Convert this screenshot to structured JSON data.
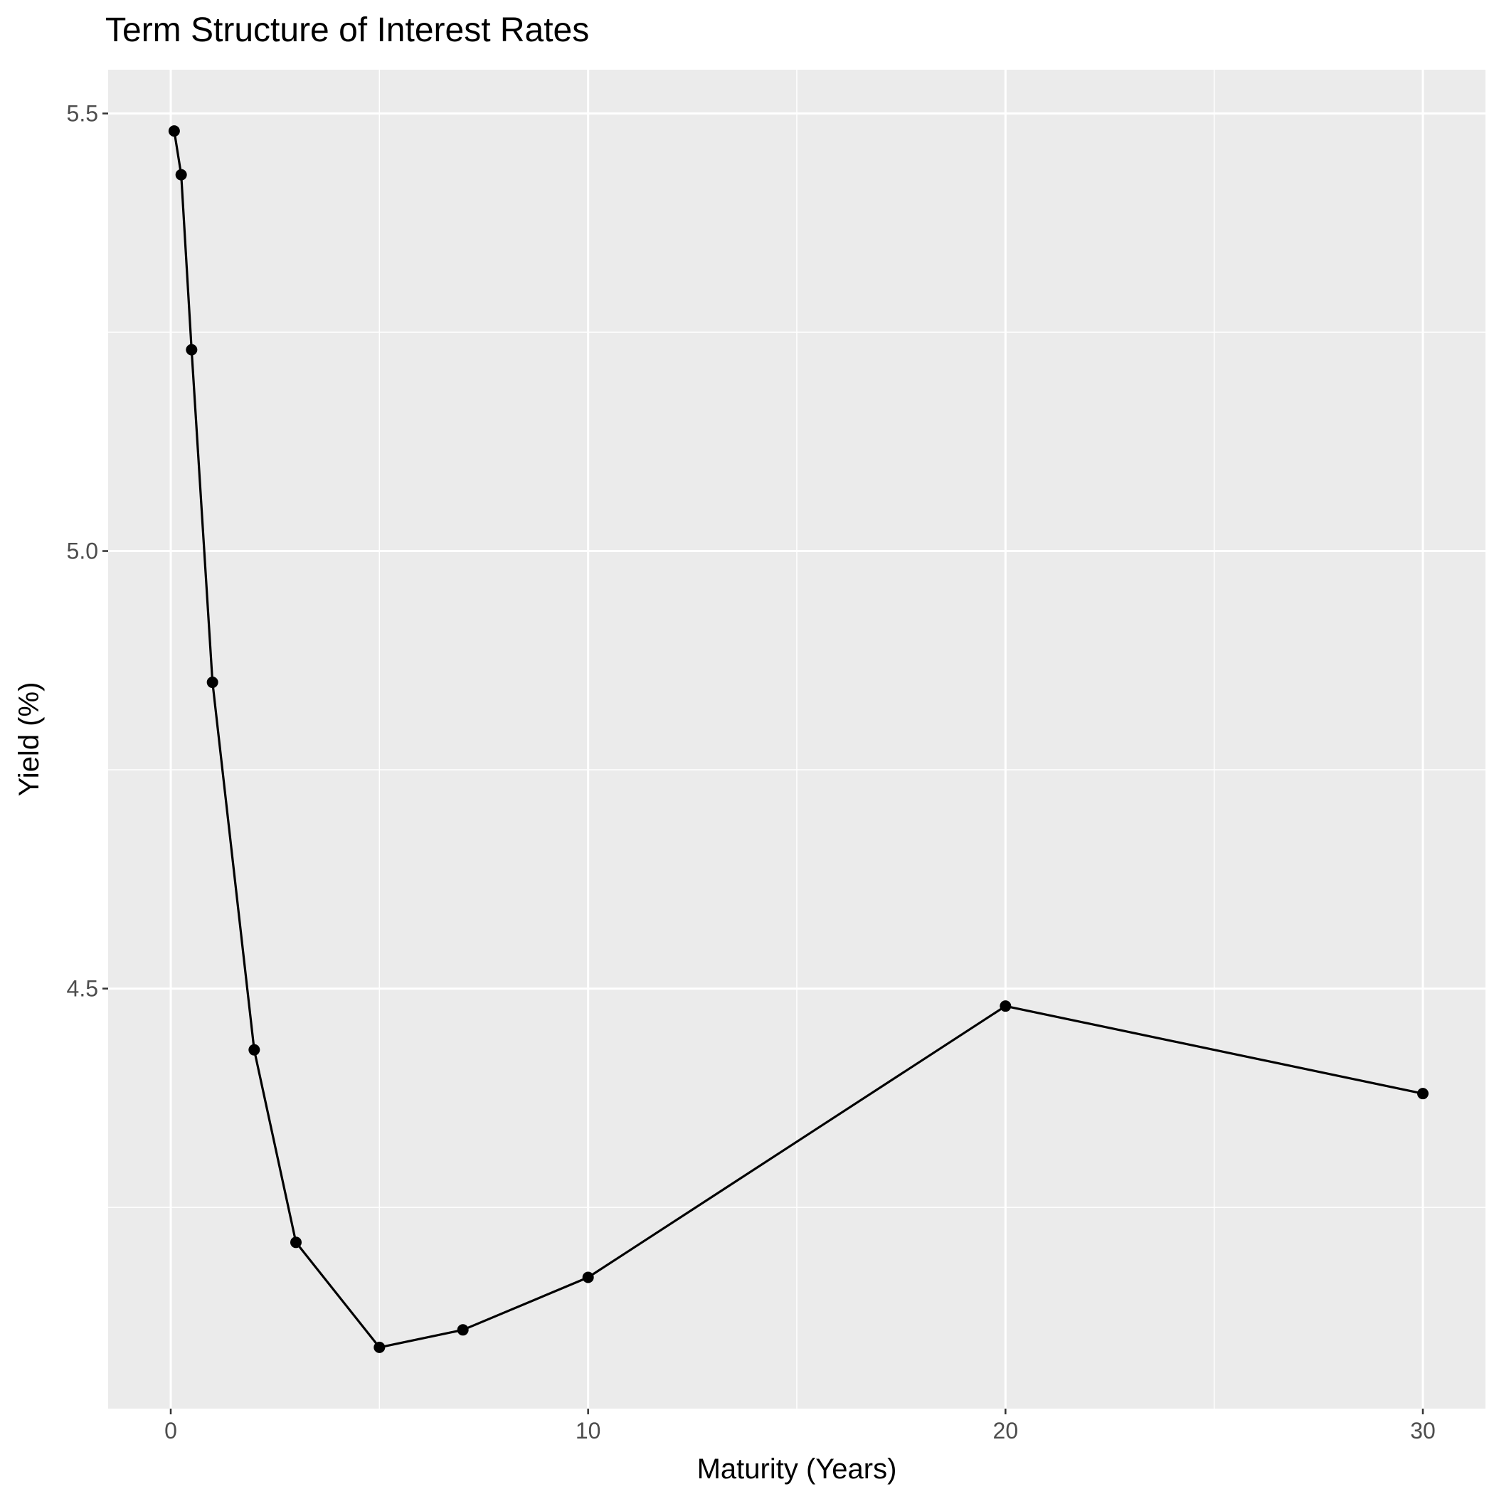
{
  "chart_data": {
    "type": "line",
    "title": "Term Structure of Interest Rates",
    "xlabel": "Maturity (Years)",
    "ylabel": "Yield (%)",
    "xlim": [
      -1.5,
      31.5
    ],
    "ylim": [
      4.02,
      5.55
    ],
    "x_ticks": [
      0,
      10,
      20,
      30
    ],
    "x_tick_labels": [
      "0",
      "10",
      "20",
      "30"
    ],
    "x_minor_ticks": [
      5,
      15,
      25
    ],
    "y_ticks": [
      4.5,
      5.0,
      5.5
    ],
    "y_tick_labels": [
      "4.5",
      "5.0",
      "5.5"
    ],
    "y_minor_ticks": [
      4.25,
      4.75,
      5.25
    ],
    "grid": true,
    "legend": "none",
    "colors": {
      "panel": "#ebebeb",
      "grid": "#ffffff",
      "line": "#000000",
      "tick_text": "#4d4d4d"
    },
    "series": [
      {
        "x": [
          0.083,
          0.25,
          0.5,
          1,
          2,
          3,
          5,
          7,
          10,
          20,
          30
        ],
        "y": [
          5.48,
          5.43,
          5.23,
          4.85,
          4.43,
          4.21,
          4.09,
          4.11,
          4.17,
          4.48,
          4.38
        ]
      }
    ]
  }
}
